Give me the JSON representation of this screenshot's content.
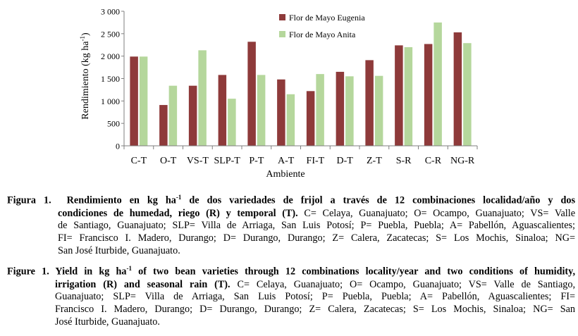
{
  "chart_data": {
    "type": "bar",
    "title": "",
    "xlabel": "Ambiente",
    "ylabel_main": "Rendimiento (kg ha",
    "ylabel_sup": "-1",
    "ylabel_close": ")",
    "ylim": [
      0,
      3000
    ],
    "yticks": [
      0,
      500,
      1000,
      1500,
      2000,
      2500,
      3000
    ],
    "ytick_labels": [
      "0",
      "500",
      "1 000",
      "1 500",
      "2 000",
      "2 500",
      "3 000"
    ],
    "categories": [
      "C-T",
      "O-T",
      "VS-T",
      "SLP-T",
      "P-T",
      "A-T",
      "FI-T",
      "D-T",
      "Z-T",
      "S-R",
      "C-R",
      "NG-R"
    ],
    "series": [
      {
        "name": "Flor de Mayo Eugenia",
        "color": "#8e3a3a",
        "values": [
          1990,
          910,
          1340,
          1580,
          2320,
          1480,
          1220,
          1650,
          1910,
          2240,
          2270,
          2530
        ]
      },
      {
        "name": "Flor de Mayo Anita",
        "color": "#b5d79c",
        "values": [
          1990,
          1340,
          2130,
          1050,
          1580,
          1150,
          1600,
          1550,
          1560,
          2200,
          2750,
          2290
        ]
      }
    ],
    "legend_position": "top-right",
    "grid": false
  },
  "caption_es": {
    "label": "Figura 1.",
    "bold1": "Rendimiento en kg ha",
    "sup": "-1",
    "bold2": " de dos variedades de frijol a través de 12 combinaciones localidad/año y dos",
    "line2_bold": "condiciones de humedad, riego (R) y temporal (T).",
    "line2_text": " C= Celaya, Guanajuato; O= Ocampo, Guanajuato; VS= Valle",
    "line3": "de Santiago, Guanajuato; SLP= Villa de Arriaga, San Luis Potosí; P= Puebla, Puebla; A= Pabellón, Aguascalientes;",
    "line4": "FI= Francisco I. Madero, Durango; D= Durango, Durango; Z= Calera, Zacatecas; S= Los Mochis, Sinaloa; NG=",
    "line5": "San José Iturbide, Guanajuato."
  },
  "caption_en": {
    "label": "Figure 1.",
    "bold1": " Yield in kg ha",
    "sup": "-1",
    "bold2": " of two bean varieties through 12 combinations locality/year and two conditions of humidity,",
    "line2_bold": "irrigation (R) and seasonal rain (T).",
    "line2_text": " C= Celaya, Guanajuato; O= Ocampo, Guanajuato; VS= Valle de Santiago,",
    "line3": "Guanajuato; SLP= Villa de Arriaga, San Luis Potosí; P= Puebla, Puebla; A= Pabellón, Aguascalientes; FI=",
    "line4": "Francisco I. Madero, Durango; D= Durango, Durango; Z= Calera, Zacatecas; S= Los Mochis, Sinaloa; NG= San",
    "line5": "José Iturbide, Guanajuato."
  }
}
